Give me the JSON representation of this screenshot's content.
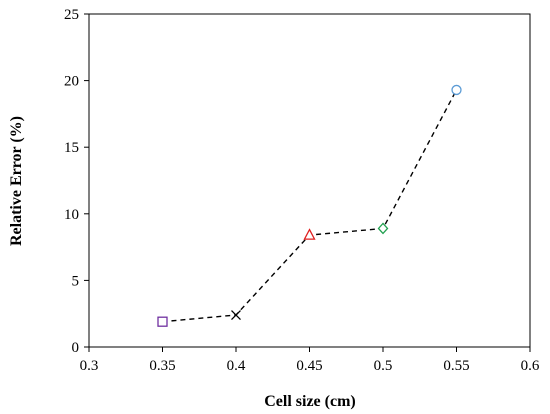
{
  "chart_data": {
    "type": "scatter",
    "title": "",
    "xlabel": "Cell size (cm)",
    "ylabel": "Relative Error (%)",
    "xlim": [
      0.3,
      0.6
    ],
    "ylim": [
      0,
      25
    ],
    "x_ticks": [
      "0.3",
      "0.35",
      "0.4",
      "0.45",
      "0.5",
      "0.55",
      "0.6"
    ],
    "y_ticks": [
      "0",
      "5",
      "10",
      "15",
      "20",
      "25"
    ],
    "grid": false,
    "legend": "none",
    "line_style": "dashed",
    "line_color": "#000000",
    "points": [
      {
        "x": 0.35,
        "y": 1.9,
        "marker": "square",
        "color": "#7030a0"
      },
      {
        "x": 0.4,
        "y": 2.4,
        "marker": "x",
        "color": "#000000"
      },
      {
        "x": 0.45,
        "y": 8.4,
        "marker": "triangle",
        "color": "#e02020"
      },
      {
        "x": 0.5,
        "y": 8.9,
        "marker": "diamond",
        "color": "#22a050"
      },
      {
        "x": 0.55,
        "y": 19.3,
        "marker": "circle",
        "color": "#5b9bd5"
      }
    ]
  }
}
